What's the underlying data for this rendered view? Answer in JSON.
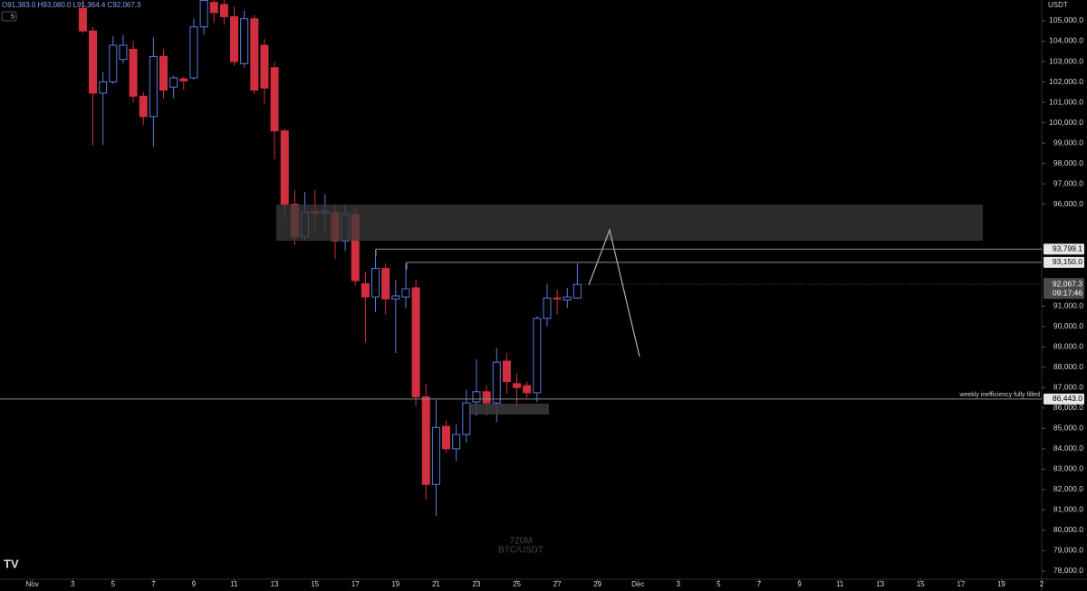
{
  "chart_data": {
    "type": "candlestick",
    "header": "O91,383.0 H93,080.0 L91,364.4 C92,067.3",
    "interval_badge": "5",
    "currency": "USDT",
    "watermark": [
      "720M",
      "BTC/USDT"
    ],
    "annotation": "weekly inefficiency fully filled",
    "countdown": "09:17:46",
    "up_color": "#5b7be0",
    "down_color": "#d12f3f",
    "xlim": [
      -1.6,
      50
    ],
    "ylim": [
      77600,
      106020
    ],
    "xticks": [
      {
        "value": 0,
        "label": "Nov"
      },
      {
        "value": 2,
        "label": "3"
      },
      {
        "value": 4,
        "label": "5"
      },
      {
        "value": 6,
        "label": "7"
      },
      {
        "value": 8,
        "label": "9"
      },
      {
        "value": 10,
        "label": "11"
      },
      {
        "value": 12,
        "label": "13"
      },
      {
        "value": 14,
        "label": "15"
      },
      {
        "value": 16,
        "label": "17"
      },
      {
        "value": 18,
        "label": "19"
      },
      {
        "value": 20,
        "label": "21"
      },
      {
        "value": 22,
        "label": "23"
      },
      {
        "value": 24,
        "label": "25"
      },
      {
        "value": 26,
        "label": "27"
      },
      {
        "value": 28,
        "label": "29"
      },
      {
        "value": 30,
        "label": "Dec"
      },
      {
        "value": 32,
        "label": "3"
      },
      {
        "value": 34,
        "label": "5"
      },
      {
        "value": 36,
        "label": "7"
      },
      {
        "value": 38,
        "label": "9"
      },
      {
        "value": 40,
        "label": "11"
      },
      {
        "value": 42,
        "label": "13"
      },
      {
        "value": 44,
        "label": "15"
      },
      {
        "value": 46,
        "label": "17"
      },
      {
        "value": 48,
        "label": "19"
      },
      {
        "value": 50,
        "label": "2"
      }
    ],
    "yticks": [
      {
        "value": 78000,
        "label": "78,000.0"
      },
      {
        "value": 79000,
        "label": "79,000.0"
      },
      {
        "value": 80000,
        "label": "80,000.0"
      },
      {
        "value": 81000,
        "label": "81,000.0"
      },
      {
        "value": 82000,
        "label": "82,000.0"
      },
      {
        "value": 83000,
        "label": "83,000.0"
      },
      {
        "value": 84000,
        "label": "84,000.0"
      },
      {
        "value": 85000,
        "label": "85,000.0"
      },
      {
        "value": 86000,
        "label": "86,000.0"
      },
      {
        "value": 87000,
        "label": "87,000.0"
      },
      {
        "value": 88000,
        "label": "88,000.0"
      },
      {
        "value": 89000,
        "label": "89,000.0"
      },
      {
        "value": 90000,
        "label": "90,000.0"
      },
      {
        "value": 91000,
        "label": "91,000.0"
      },
      {
        "value": 96000,
        "label": "96,000.0"
      },
      {
        "value": 97000,
        "label": "97,000.0"
      },
      {
        "value": 98000,
        "label": "98,000.0"
      },
      {
        "value": 99000,
        "label": "99,000.0"
      },
      {
        "value": 100000,
        "label": "100,000.0"
      },
      {
        "value": 101000,
        "label": "101,000.0"
      },
      {
        "value": 102000,
        "label": "102,000.0"
      },
      {
        "value": 103000,
        "label": "103,000.0"
      },
      {
        "value": 104000,
        "label": "104,000.0"
      },
      {
        "value": 105000,
        "label": "105,000.0"
      }
    ],
    "price_lines": [
      {
        "value": 93799.1,
        "label": "93,799.1"
      },
      {
        "value": 93150,
        "label": "93,150.0"
      },
      {
        "value": 86443,
        "label": "86,443.0"
      }
    ],
    "last_price": {
      "value": 92067.3,
      "label": "92,067.3"
    },
    "x": [
      2.5,
      3,
      3.5,
      4,
      4.5,
      5,
      5.5,
      6,
      6.5,
      7,
      7.5,
      8,
      8.5,
      9,
      9.5,
      10,
      10.5,
      11,
      11.5,
      12,
      12.5,
      13,
      13.5,
      14,
      14.5,
      15,
      15.5,
      16,
      16.5,
      17,
      17.5,
      18,
      18.5,
      19,
      19.5,
      20,
      20.5,
      21,
      21.5,
      22,
      22.5,
      23,
      23.5,
      24,
      24.5,
      25,
      25.5,
      26,
      26.5,
      27
    ],
    "open": [
      105600,
      104500,
      101450,
      102000,
      103100,
      103600,
      101300,
      100300,
      103250,
      101750,
      102150,
      102200,
      104700,
      105900,
      105800,
      105200,
      102900,
      105100,
      103800,
      102700,
      99600,
      96000,
      94400,
      95650,
      95550,
      95600,
      94200,
      95500,
      92100,
      91450,
      92850,
      91350,
      91450,
      91900,
      86550,
      82250,
      85100,
      84000,
      84700,
      86300,
      86800,
      86250,
      88300,
      87200,
      87100,
      86750,
      90400,
      91400,
      91300,
      91400
    ],
    "high": [
      106200,
      104700,
      102470,
      104250,
      104300,
      104000,
      101500,
      104200,
      103600,
      102300,
      102250,
      105100,
      106300,
      106200,
      106100,
      105700,
      105500,
      105300,
      104100,
      103000,
      99700,
      96700,
      96600,
      96700,
      96500,
      96000,
      96000,
      95900,
      92700,
      93800,
      93100,
      92300,
      93150,
      92300,
      87200,
      86400,
      85400,
      85200,
      86900,
      88400,
      87100,
      88950,
      88700,
      87700,
      87300,
      90500,
      92100,
      91800,
      91900,
      93100
    ],
    "low": [
      104400,
      98900,
      98900,
      101900,
      102900,
      101000,
      99900,
      98800,
      101200,
      101200,
      101600,
      102100,
      104300,
      104900,
      104800,
      102800,
      102700,
      101400,
      100900,
      98200,
      95300,
      94000,
      94200,
      94600,
      94700,
      93300,
      93700,
      92000,
      89200,
      90700,
      90600,
      88700,
      90900,
      86100,
      81500,
      80700,
      83800,
      83400,
      84300,
      85600,
      85600,
      85300,
      86700,
      86100,
      86500,
      86300,
      90000,
      90600,
      90900,
      91350
    ],
    "close": [
      104500,
      101450,
      102000,
      103800,
      103800,
      101300,
      100300,
      103250,
      101600,
      102200,
      102050,
      104700,
      106000,
      105400,
      105200,
      103000,
      105100,
      101600,
      101700,
      99600,
      96000,
      94400,
      95600,
      95550,
      95650,
      94200,
      95500,
      92250,
      91450,
      92850,
      91350,
      91500,
      91850,
      86550,
      82250,
      85050,
      84000,
      84700,
      86250,
      86800,
      86250,
      88250,
      87300,
      87000,
      86750,
      90400,
      91400,
      91350,
      91450,
      92067.3
    ]
  }
}
